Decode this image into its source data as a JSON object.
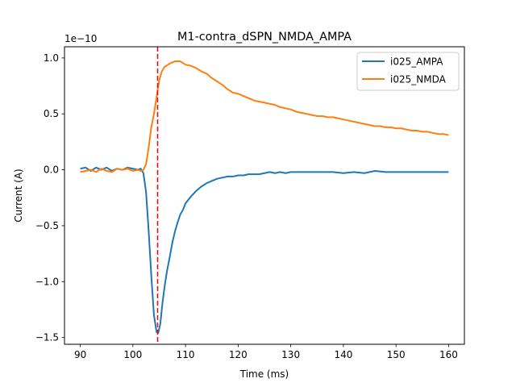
{
  "chart_data": {
    "type": "line",
    "title": "M1-contra_dSPN_NMDA_AMPA",
    "xlabel": "Time (ms)",
    "ylabel": "Current (A)",
    "y_offset_label": "1e−10",
    "xlim": [
      87,
      163
    ],
    "ylim": [
      -1.56,
      1.1
    ],
    "y_scale": 1e-10,
    "x_ticks": [
      90,
      100,
      110,
      120,
      130,
      140,
      150,
      160
    ],
    "x_tick_labels": [
      "90",
      "100",
      "110",
      "120",
      "130",
      "140",
      "150",
      "160"
    ],
    "y_ticks": [
      -1.5,
      -1.0,
      -0.5,
      0.0,
      0.5,
      1.0
    ],
    "y_tick_labels": [
      "−1.5",
      "−1.0",
      "−0.5",
      "0.0",
      "0.5",
      "1.0"
    ],
    "vline": {
      "x": 104.7,
      "color": "#ff0000",
      "style": "dashed"
    },
    "legend_position": "upper right",
    "grid": false,
    "series": [
      {
        "name": "i025_AMPA",
        "color": "#1f77b4",
        "points": [
          [
            90,
            0.01
          ],
          [
            91,
            0.02
          ],
          [
            92,
            -0.01
          ],
          [
            93,
            0.02
          ],
          [
            94,
            0.0
          ],
          [
            95,
            0.02
          ],
          [
            96,
            -0.01
          ],
          [
            97,
            0.01
          ],
          [
            98,
            0.0
          ],
          [
            99,
            0.02
          ],
          [
            100,
            0.01
          ],
          [
            101,
            0.0
          ],
          [
            101.5,
            0.01
          ],
          [
            102,
            -0.03
          ],
          [
            102.5,
            -0.2
          ],
          [
            103,
            -0.55
          ],
          [
            103.5,
            -0.95
          ],
          [
            104,
            -1.3
          ],
          [
            104.5,
            -1.45
          ],
          [
            104.8,
            -1.46
          ],
          [
            105.2,
            -1.38
          ],
          [
            105.6,
            -1.2
          ],
          [
            106,
            -1.05
          ],
          [
            106.5,
            -0.9
          ],
          [
            107,
            -0.78
          ],
          [
            107.5,
            -0.65
          ],
          [
            108,
            -0.55
          ],
          [
            108.5,
            -0.47
          ],
          [
            109,
            -0.4
          ],
          [
            109.5,
            -0.36
          ],
          [
            110,
            -0.3
          ],
          [
            111,
            -0.24
          ],
          [
            112,
            -0.19
          ],
          [
            113,
            -0.15
          ],
          [
            114,
            -0.12
          ],
          [
            115,
            -0.1
          ],
          [
            116,
            -0.08
          ],
          [
            117,
            -0.07
          ],
          [
            118,
            -0.06
          ],
          [
            119,
            -0.06
          ],
          [
            120,
            -0.05
          ],
          [
            121,
            -0.05
          ],
          [
            122,
            -0.04
          ],
          [
            123,
            -0.04
          ],
          [
            124,
            -0.04
          ],
          [
            125,
            -0.03
          ],
          [
            126,
            -0.02
          ],
          [
            127,
            -0.03
          ],
          [
            128,
            -0.02
          ],
          [
            129,
            -0.03
          ],
          [
            130,
            -0.02
          ],
          [
            132,
            -0.02
          ],
          [
            134,
            -0.02
          ],
          [
            136,
            -0.02
          ],
          [
            138,
            -0.02
          ],
          [
            140,
            -0.03
          ],
          [
            142,
            -0.02
          ],
          [
            144,
            -0.03
          ],
          [
            146,
            -0.01
          ],
          [
            148,
            -0.02
          ],
          [
            150,
            -0.02
          ],
          [
            152,
            -0.02
          ],
          [
            154,
            -0.02
          ],
          [
            156,
            -0.02
          ],
          [
            158,
            -0.02
          ],
          [
            160,
            -0.02
          ]
        ]
      },
      {
        "name": "i025_NMDA",
        "color": "#ff7f0e",
        "points": [
          [
            90,
            -0.02
          ],
          [
            91,
            -0.01
          ],
          [
            92,
            0.0
          ],
          [
            93,
            -0.02
          ],
          [
            94,
            0.01
          ],
          [
            95,
            -0.01
          ],
          [
            96,
            -0.02
          ],
          [
            97,
            0.01
          ],
          [
            98,
            0.0
          ],
          [
            99,
            0.01
          ],
          [
            100,
            -0.01
          ],
          [
            101,
            0.0
          ],
          [
            101.5,
            -0.01
          ],
          [
            102,
            0.0
          ],
          [
            102.5,
            0.05
          ],
          [
            103,
            0.2
          ],
          [
            103.5,
            0.38
          ],
          [
            104,
            0.5
          ],
          [
            104.5,
            0.65
          ],
          [
            105,
            0.8
          ],
          [
            105.5,
            0.88
          ],
          [
            106,
            0.92
          ],
          [
            107,
            0.95
          ],
          [
            108,
            0.97
          ],
          [
            109,
            0.97
          ],
          [
            110,
            0.94
          ],
          [
            111,
            0.93
          ],
          [
            112,
            0.91
          ],
          [
            113,
            0.88
          ],
          [
            114,
            0.86
          ],
          [
            115,
            0.82
          ],
          [
            116,
            0.79
          ],
          [
            117,
            0.76
          ],
          [
            118,
            0.72
          ],
          [
            119,
            0.69
          ],
          [
            120,
            0.68
          ],
          [
            121,
            0.66
          ],
          [
            122,
            0.64
          ],
          [
            123,
            0.62
          ],
          [
            124,
            0.61
          ],
          [
            125,
            0.6
          ],
          [
            126,
            0.59
          ],
          [
            127,
            0.58
          ],
          [
            128,
            0.56
          ],
          [
            129,
            0.55
          ],
          [
            130,
            0.54
          ],
          [
            131,
            0.52
          ],
          [
            132,
            0.51
          ],
          [
            133,
            0.5
          ],
          [
            134,
            0.49
          ],
          [
            135,
            0.48
          ],
          [
            136,
            0.48
          ],
          [
            137,
            0.47
          ],
          [
            138,
            0.47
          ],
          [
            139,
            0.46
          ],
          [
            140,
            0.45
          ],
          [
            141,
            0.44
          ],
          [
            142,
            0.43
          ],
          [
            143,
            0.42
          ],
          [
            144,
            0.41
          ],
          [
            145,
            0.4
          ],
          [
            146,
            0.39
          ],
          [
            147,
            0.39
          ],
          [
            148,
            0.38
          ],
          [
            149,
            0.38
          ],
          [
            150,
            0.37
          ],
          [
            151,
            0.37
          ],
          [
            152,
            0.36
          ],
          [
            153,
            0.35
          ],
          [
            154,
            0.35
          ],
          [
            155,
            0.34
          ],
          [
            156,
            0.34
          ],
          [
            157,
            0.33
          ],
          [
            158,
            0.32
          ],
          [
            159,
            0.32
          ],
          [
            160,
            0.31
          ]
        ]
      }
    ]
  }
}
